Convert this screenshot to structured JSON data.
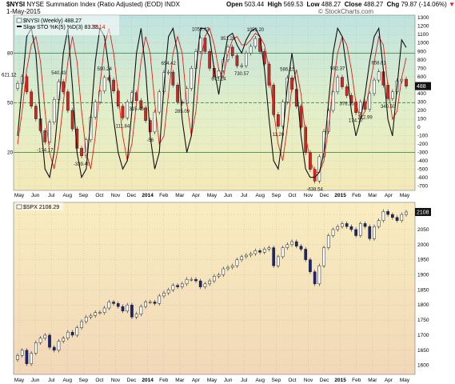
{
  "header": {
    "symbol": "$NYSI",
    "name": "NYSE Summation Index (Ratio Adjusted) (EOD)",
    "exchange": "INDX",
    "date": "1-May-2015",
    "watermark": "© StockCharts.com",
    "open_label": "Open",
    "open_value": "503.44",
    "high_label": "High",
    "high_value": "569.53",
    "low_label": "Low",
    "low_value": "488.27",
    "close_label": "Close",
    "close_value": "488.27",
    "chg_label": "Chg",
    "chg_value": "79.87 (-14.06%)",
    "chg_arrow": "▼"
  },
  "legend": {
    "nysi": "$NYSI (Weekly) 488.27",
    "sto_main": "Slow STO %K(5) %D(3) 83.38,",
    "sto_d": "77.14",
    "spx": "$SPX 2108.29"
  },
  "colors": {
    "k_line": "#111111",
    "d_line": "#e0201c",
    "up_candle": "#ffffff",
    "down_candle": "#e0201c",
    "spx_up": "#ffffff",
    "spx_down": "#1a237e",
    "h_line": "#2e7d32"
  },
  "chart_data": [
    {
      "type": "candlestick",
      "title": "$NYSI (Weekly) 488.27",
      "x_labels": [
        "May",
        "Jun",
        "Jul",
        "Aug",
        "Sep",
        "Oct",
        "Nov",
        "Dec",
        "2014",
        "Feb",
        "Mar",
        "Apr",
        "May",
        "Jun",
        "Jul",
        "Aug",
        "Sep",
        "Oct",
        "Nov",
        "Dec",
        "2015",
        "Feb",
        "Mar",
        "Apr",
        "May"
      ],
      "y_ticks": [
        1300,
        1200,
        1100,
        1000,
        900,
        800,
        700,
        600,
        500,
        400,
        300,
        200,
        100,
        0,
        -100,
        -200,
        -300,
        -400,
        -500,
        -600,
        -700
      ],
      "ylim": [
        -750,
        1330
      ],
      "overlay_axis": {
        "ticks": [
          80,
          50,
          20
        ],
        "lines": [
          80,
          50,
          20
        ]
      },
      "current_price_label": "488",
      "left_label": "621.12",
      "close": [
        520,
        600,
        420,
        250,
        100,
        -40,
        -174.17,
        60,
        330,
        540.43,
        420,
        200,
        -20,
        -250,
        -339.4,
        -150,
        120,
        300,
        430,
        590.24,
        560,
        430,
        250,
        111.84,
        300,
        410,
        315.46,
        230,
        80,
        -56,
        180,
        420,
        650,
        654.42,
        500,
        300,
        285.09,
        460,
        700,
        900,
        1059.43,
        900,
        700,
        600,
        671.14,
        800,
        951.2,
        850,
        730,
        730.57,
        880,
        960,
        1053.2,
        900,
        750,
        500,
        150,
        11.2,
        300,
        586.15,
        450,
        250,
        0,
        -300,
        -500,
        -638.54,
        -350,
        -50,
        200,
        420,
        592.37,
        480,
        376.25,
        300,
        174.17,
        300,
        212.99,
        400,
        560,
        658.61,
        500,
        340.5,
        420,
        550,
        569.53,
        488.27
      ],
      "annotations": [
        {
          "i": 6,
          "text": "-174.17"
        },
        {
          "i": 9,
          "text": "540.43"
        },
        {
          "i": 14,
          "text": "-339.40"
        },
        {
          "i": 19,
          "text": "590.24"
        },
        {
          "i": 23,
          "text": "111.84"
        },
        {
          "i": 26,
          "text": "315.46"
        },
        {
          "i": 29,
          "text": "-56"
        },
        {
          "i": 33,
          "text": "654.42"
        },
        {
          "i": 36,
          "text": "285.09"
        },
        {
          "i": 40,
          "text": "1059.43"
        },
        {
          "i": 44,
          "text": "671.14"
        },
        {
          "i": 46,
          "text": "951.20"
        },
        {
          "i": 49,
          "text": "730.57"
        },
        {
          "i": 52,
          "text": "1053.20"
        },
        {
          "i": 57,
          "text": "11.20"
        },
        {
          "i": 59,
          "text": "586.15"
        },
        {
          "i": 65,
          "text": "-638.54"
        },
        {
          "i": 70,
          "text": "592.37"
        },
        {
          "i": 72,
          "text": "376.25"
        },
        {
          "i": 74,
          "text": "174.17"
        },
        {
          "i": 76,
          "text": "212.99"
        },
        {
          "i": 79,
          "text": "658.61"
        },
        {
          "i": 81,
          "text": "340.50"
        }
      ],
      "slow_sto": {
        "k": [
          30,
          60,
          90,
          95,
          80,
          40,
          10,
          5,
          20,
          50,
          80,
          95,
          60,
          20,
          5,
          10,
          40,
          75,
          95,
          90,
          70,
          40,
          20,
          10,
          15,
          45,
          80,
          95,
          70,
          30,
          10,
          20,
          60,
          90,
          95,
          80,
          40,
          20,
          30,
          70,
          95,
          95,
          90,
          70,
          55,
          75,
          90,
          92,
          85,
          80,
          88,
          93,
          95,
          90,
          70,
          40,
          15,
          10,
          30,
          60,
          80,
          60,
          30,
          10,
          5,
          5,
          8,
          20,
          50,
          80,
          95,
          90,
          70,
          45,
          30,
          40,
          55,
          75,
          90,
          95,
          70,
          40,
          30,
          60,
          88,
          83.38
        ],
        "d": [
          25,
          45,
          70,
          85,
          90,
          75,
          45,
          20,
          10,
          25,
          50,
          75,
          90,
          75,
          45,
          20,
          10,
          30,
          60,
          85,
          95,
          80,
          55,
          30,
          15,
          25,
          50,
          75,
          90,
          80,
          50,
          25,
          30,
          55,
          80,
          90,
          80,
          50,
          30,
          45,
          75,
          90,
          95,
          85,
          70,
          65,
          80,
          88,
          90,
          85,
          85,
          88,
          92,
          90,
          85,
          70,
          45,
          25,
          15,
          35,
          60,
          70,
          55,
          30,
          15,
          8,
          8,
          15,
          35,
          60,
          80,
          90,
          85,
          70,
          50,
          40,
          45,
          60,
          75,
          90,
          85,
          60,
          40,
          45,
          65,
          77.14
        ]
      }
    },
    {
      "type": "candlestick",
      "title": "$SPX 2108.29",
      "x_labels": [
        "May",
        "Jun",
        "Jul",
        "Aug",
        "Sep",
        "Oct",
        "Nov",
        "Dec",
        "2014",
        "Feb",
        "Mar",
        "Apr",
        "May",
        "Jun",
        "Jul",
        "Aug",
        "Sep",
        "Oct",
        "Nov",
        "Dec",
        "2015",
        "Feb",
        "Mar",
        "Apr",
        "May"
      ],
      "y_ticks": [
        2100,
        2050,
        2000,
        1950,
        1900,
        1850,
        1800,
        1750,
        1700,
        1650,
        1600
      ],
      "ylim": [
        1570,
        2140
      ],
      "current_price_label": "2108",
      "close": [
        1633,
        1650,
        1605,
        1640,
        1675,
        1690,
        1700,
        1660,
        1650,
        1680,
        1690,
        1710,
        1700,
        1725,
        1745,
        1760,
        1765,
        1775,
        1775,
        1790,
        1810,
        1805,
        1795,
        1780,
        1800,
        1760,
        1770,
        1795,
        1810,
        1810,
        1805,
        1830,
        1840,
        1850,
        1865,
        1860,
        1870,
        1885,
        1885,
        1880,
        1860,
        1870,
        1880,
        1895,
        1900,
        1920,
        1925,
        1930,
        1950,
        1960,
        1965,
        1970,
        1980,
        1975,
        1985,
        1990,
        1930,
        1960,
        1990,
        2000,
        2010,
        1995,
        1985,
        1950,
        1910,
        1870,
        1930,
        1990,
        2030,
        2050,
        2060,
        2070,
        2060,
        2050,
        2030,
        2070,
        2060,
        2020,
        2060,
        2080,
        2110,
        2100,
        2090,
        2080,
        2100,
        2108.29
      ]
    }
  ]
}
